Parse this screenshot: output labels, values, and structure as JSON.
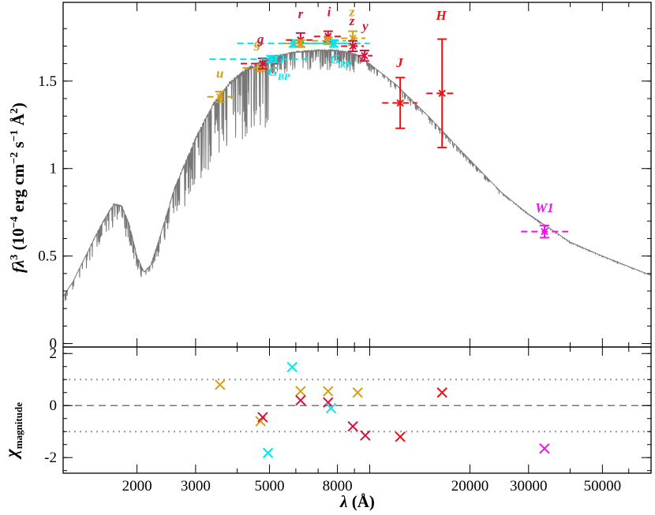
{
  "chart_data": [
    {
      "type": "scatter",
      "panel": "top",
      "ylabel_parts": {
        "f": "f",
        "lambda": "λ",
        "exp3": "3",
        "unit_open": " (10",
        "exp_m4": "−4",
        "unit_mid": " erg cm",
        "exp_m2": "−2",
        "unit_s": " s",
        "exp_m1": "−1",
        "unit_A": " Å",
        "exp_2": "2",
        "unit_close": ")"
      },
      "xscale": "log",
      "xlim": [
        1200,
        70000
      ],
      "ylim": [
        -0.02,
        1.95
      ],
      "yticks": [
        "0",
        "0.5",
        "1",
        "1.5"
      ],
      "ytick_values": [
        0,
        0.5,
        1,
        1.5
      ],
      "model_spectrum": {
        "color": "#777777",
        "knots": [
          [
            1200,
            0.27
          ],
          [
            1280,
            0.35
          ],
          [
            1400,
            0.5
          ],
          [
            1550,
            0.67
          ],
          [
            1700,
            0.8
          ],
          [
            1800,
            0.79
          ],
          [
            1900,
            0.68
          ],
          [
            2000,
            0.5
          ],
          [
            2100,
            0.41
          ],
          [
            2200,
            0.45
          ],
          [
            2350,
            0.62
          ],
          [
            2600,
            0.9
          ],
          [
            3000,
            1.18
          ],
          [
            3400,
            1.38
          ],
          [
            3800,
            1.5
          ],
          [
            4300,
            1.58
          ],
          [
            5000,
            1.64
          ],
          [
            6000,
            1.67
          ],
          [
            7000,
            1.68
          ],
          [
            8000,
            1.68
          ],
          [
            9000,
            1.66
          ],
          [
            10000,
            1.6
          ],
          [
            12000,
            1.48
          ],
          [
            15000,
            1.3
          ],
          [
            20000,
            1.05
          ],
          [
            25000,
            0.86
          ],
          [
            30000,
            0.74
          ],
          [
            40000,
            0.58
          ],
          [
            50000,
            0.5
          ],
          [
            60000,
            0.44
          ],
          [
            70000,
            0.39
          ]
        ]
      },
      "photometry": [
        {
          "label": "u",
          "x": 3550,
          "y": 1.41,
          "yerr": 0.03,
          "xerr": [
            3250,
            3900
          ],
          "color": "#d4a017",
          "marker": "x"
        },
        {
          "label": "g",
          "x": 4700,
          "y": 1.575,
          "yerr": 0.02,
          "xerr": [
            4150,
            5300
          ],
          "color": "#d4a017",
          "marker": "x"
        },
        {
          "label": "g",
          "x": 4770,
          "y": 1.6,
          "yerr": 0.03,
          "xerr": [
            4100,
            5400
          ],
          "color": "#d4143c",
          "marker": "x"
        },
        {
          "label": "G_BP",
          "x": 5050,
          "y": 1.625,
          "yerr": 0.02,
          "xerr": [
            3300,
            6600
          ],
          "color": "#00e5ee",
          "marker": "x"
        },
        {
          "label": "G",
          "x": 5900,
          "y": 1.715,
          "yerr": 0.02,
          "xerr": [
            4000,
            8600
          ],
          "color": "#00e5ee",
          "marker": "x"
        },
        {
          "label": "r",
          "x": 6200,
          "y": 1.735,
          "yerr": 0.04,
          "xerr": [
            5600,
            6900
          ],
          "color": "#d4143c",
          "marker": "x"
        },
        {
          "label": "r",
          "x": 6200,
          "y": 1.715,
          "yerr": 0.02,
          "xerr": [
            5500,
            7000
          ],
          "color": "#d4a017",
          "marker": "x"
        },
        {
          "label": "i",
          "x": 7500,
          "y": 1.755,
          "yerr": 0.03,
          "xerr": [
            6800,
            8300
          ],
          "color": "#d4143c",
          "marker": "x"
        },
        {
          "label": "i",
          "x": 7500,
          "y": 1.73,
          "yerr": 0.02,
          "xerr": [
            6700,
            8500
          ],
          "color": "#d4a017",
          "marker": "x"
        },
        {
          "label": "G_RP",
          "x": 7800,
          "y": 1.715,
          "yerr": 0.02,
          "xerr": [
            6300,
            10000
          ],
          "color": "#00e5ee",
          "marker": "x"
        },
        {
          "label": "z",
          "x": 8900,
          "y": 1.745,
          "yerr": 0.04,
          "xerr": [
            8200,
            9700
          ],
          "color": "#d4a017",
          "marker": "x"
        },
        {
          "label": "z",
          "x": 8900,
          "y": 1.7,
          "yerr": 0.03,
          "xerr": [
            8200,
            9600
          ],
          "color": "#d4143c",
          "marker": "x"
        },
        {
          "label": "y",
          "x": 9650,
          "y": 1.645,
          "yerr": 0.03,
          "xerr": [
            9200,
            10200
          ],
          "color": "#d4143c",
          "marker": "x"
        },
        {
          "label": "J",
          "x": 12350,
          "y": 1.375,
          "yerr": 0.145,
          "xerr": [
            10900,
            13900
          ],
          "color": "#ee1111",
          "marker": "x"
        },
        {
          "label": "H",
          "x": 16500,
          "y": 1.43,
          "yerr": 0.31,
          "xerr": [
            14800,
            18300
          ],
          "color": "#ee1111",
          "marker": "x"
        },
        {
          "label": "W1",
          "x": 33500,
          "y": 0.64,
          "yerr": 0.035,
          "xerr": [
            28500,
            39500
          ],
          "color": "#ee11ee",
          "marker": "x"
        }
      ],
      "band_labels": [
        {
          "text": "u",
          "x": 3550,
          "y": 1.52,
          "color": "#d4a017"
        },
        {
          "text": "g",
          "x": 4600,
          "y": 1.69,
          "color": "#d4a017"
        },
        {
          "text": "g",
          "x": 4700,
          "y": 1.715,
          "color": "#d4143c"
        },
        {
          "text": "G",
          "x": 5350,
          "y": 1.6,
          "color": "#00e5ee"
        },
        {
          "text": "r",
          "x": 6200,
          "y": 1.86,
          "color": "#d4143c"
        },
        {
          "text": "i",
          "x": 7550,
          "y": 1.87,
          "color": "#d4143c"
        },
        {
          "text": "z",
          "x": 8850,
          "y": 1.87,
          "color": "#d4a017"
        },
        {
          "text": "z",
          "x": 8850,
          "y": 1.82,
          "color": "#d4143c"
        },
        {
          "text": "y",
          "x": 9700,
          "y": 1.79,
          "color": "#d4143c"
        },
        {
          "text": "J",
          "x": 12300,
          "y": 1.58,
          "color": "#ee1111"
        },
        {
          "text": "H",
          "x": 16400,
          "y": 1.85,
          "color": "#ee1111"
        },
        {
          "text": "W1",
          "x": 33500,
          "y": 0.75,
          "color": "#ee11ee"
        }
      ],
      "band_labels_sub": [
        {
          "base": "G",
          "sub": "BP",
          "x": 4950,
          "y": 1.53,
          "color": "#00e5ee"
        },
        {
          "base": "G",
          "sub": "RP",
          "x": 7600,
          "y": 1.6,
          "color": "#00e5ee"
        }
      ]
    },
    {
      "type": "scatter",
      "panel": "bottom",
      "ylabel_parts": {
        "chi": "χ",
        "sub": "magnitude"
      },
      "xlabel_parts": {
        "lambda": "λ",
        "unit": " (Å)"
      },
      "xscale": "log",
      "xlim": [
        1200,
        70000
      ],
      "ylim": [
        -2.6,
        2.25
      ],
      "yticks": [
        "-2",
        "0",
        "2"
      ],
      "ytick_values": [
        -2,
        0,
        2
      ],
      "xticks": [
        "2000",
        "3000",
        "5000",
        "8000",
        "20000",
        "30000",
        "50000"
      ],
      "xtick_values": [
        2000,
        3000,
        5000,
        8000,
        20000,
        30000,
        50000
      ],
      "reference_lines": [
        {
          "y": 0,
          "style": "dashed"
        },
        {
          "y": 1,
          "style": "dotted"
        },
        {
          "y": -1,
          "style": "dotted"
        }
      ],
      "residuals": [
        {
          "x": 3550,
          "y": 0.8,
          "color": "#d4a017"
        },
        {
          "x": 4700,
          "y": -0.6,
          "color": "#d4a017"
        },
        {
          "x": 4770,
          "y": -0.45,
          "color": "#d4143c"
        },
        {
          "x": 4950,
          "y": -1.82,
          "color": "#00e5ee"
        },
        {
          "x": 5850,
          "y": 1.48,
          "color": "#00e5ee"
        },
        {
          "x": 6200,
          "y": 0.55,
          "color": "#d4a017"
        },
        {
          "x": 6200,
          "y": 0.2,
          "color": "#d4143c"
        },
        {
          "x": 7500,
          "y": 0.55,
          "color": "#d4a017"
        },
        {
          "x": 7500,
          "y": 0.12,
          "color": "#d4143c"
        },
        {
          "x": 7650,
          "y": -0.1,
          "color": "#00e5ee"
        },
        {
          "x": 8900,
          "y": -0.8,
          "color": "#d4143c"
        },
        {
          "x": 9200,
          "y": 0.5,
          "color": "#d4a017"
        },
        {
          "x": 9700,
          "y": -1.15,
          "color": "#d4143c"
        },
        {
          "x": 12350,
          "y": -1.2,
          "color": "#ee1111"
        },
        {
          "x": 16500,
          "y": 0.5,
          "color": "#ee1111"
        },
        {
          "x": 33500,
          "y": -1.65,
          "color": "#ee11ee"
        }
      ]
    }
  ]
}
